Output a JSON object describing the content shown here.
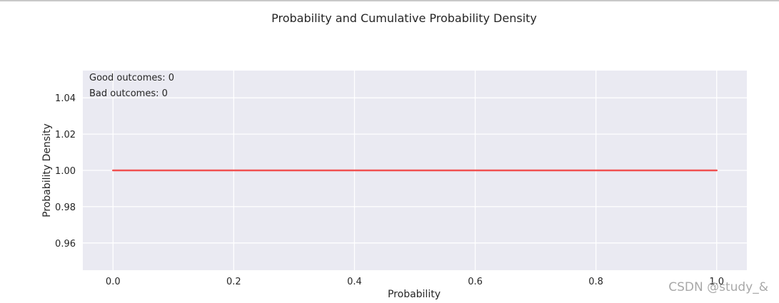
{
  "figure": {
    "title": "Probability and Cumulative Probability Density",
    "watermark": "CSDN @study_&"
  },
  "chart_data": {
    "type": "line",
    "title": "Probability and Cumulative Probability Density",
    "xlabel": "Probability",
    "ylabel": "Probability Density",
    "xlim": [
      -0.05,
      1.05
    ],
    "ylim": [
      0.945,
      1.055
    ],
    "xticks": [
      0.0,
      0.2,
      0.4,
      0.6,
      0.8,
      1.0
    ],
    "xtick_labels": [
      "0.0",
      "0.2",
      "0.4",
      "0.6",
      "0.8",
      "1.0"
    ],
    "yticks": [
      0.96,
      0.98,
      1.0,
      1.02,
      1.04
    ],
    "ytick_labels": [
      "0.96",
      "0.98",
      "1.00",
      "1.02",
      "1.04"
    ],
    "grid": true,
    "series": [
      {
        "x": [
          0.0,
          1.0
        ],
        "y": [
          1.0,
          1.0
        ],
        "color": "#f05050"
      }
    ],
    "annotations": [
      "Good outcomes: 0",
      "Bad outcomes: 0"
    ],
    "style": {
      "plot_background": "#eaeaf2",
      "grid_color": "#ffffff",
      "text_color": "#262626"
    }
  }
}
